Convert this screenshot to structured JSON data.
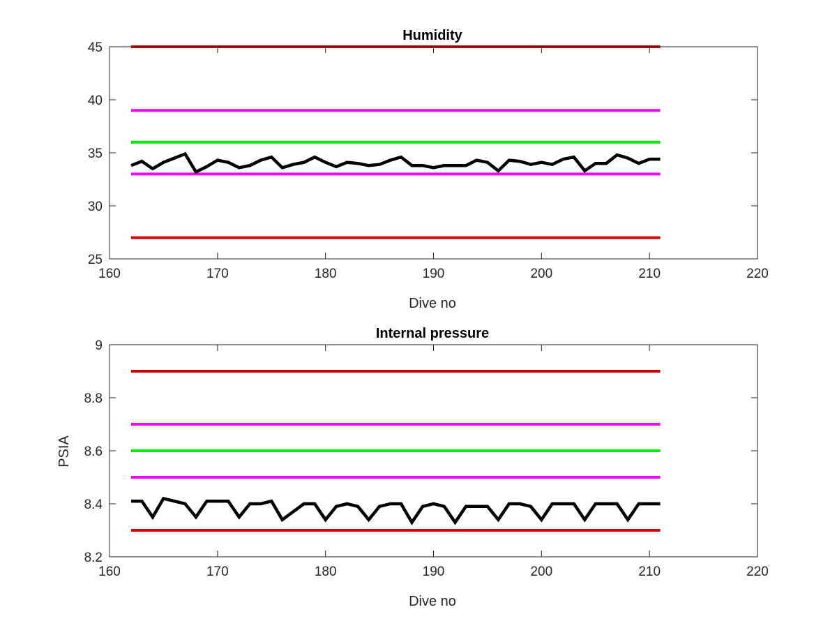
{
  "chart_data": [
    {
      "type": "line",
      "title": "Humidity",
      "xlabel": "Dive no",
      "ylabel": "",
      "xlim": [
        160,
        220
      ],
      "ylim": [
        25,
        45
      ],
      "xticks": [
        160,
        170,
        180,
        190,
        200,
        210,
        220
      ],
      "yticks": [
        25,
        30,
        35,
        40,
        45
      ],
      "grid": false,
      "series": [
        {
          "color": "#d40000",
          "x": [
            162,
            211
          ],
          "y": [
            45,
            45
          ]
        },
        {
          "color": "#ff00ff",
          "x": [
            162,
            211
          ],
          "y": [
            39,
            39
          ]
        },
        {
          "color": "#00ee00",
          "x": [
            162,
            211
          ],
          "y": [
            36,
            36
          ]
        },
        {
          "color": "#ff00ff",
          "x": [
            162,
            211
          ],
          "y": [
            33,
            33
          ]
        },
        {
          "color": "#d40000",
          "x": [
            162,
            211
          ],
          "y": [
            27,
            27
          ]
        },
        {
          "color": "#000000",
          "x": [
            162,
            163,
            164,
            165,
            166,
            167,
            168,
            169,
            170,
            171,
            172,
            173,
            174,
            175,
            176,
            177,
            178,
            179,
            180,
            181,
            182,
            183,
            184,
            185,
            186,
            187,
            188,
            189,
            190,
            191,
            192,
            193,
            194,
            195,
            196,
            197,
            198,
            199,
            200,
            201,
            202,
            203,
            204,
            205,
            206,
            207,
            208,
            209,
            210,
            211
          ],
          "y": [
            33.8,
            34.2,
            33.5,
            34.1,
            34.5,
            34.9,
            33.2,
            33.7,
            34.3,
            34.1,
            33.6,
            33.8,
            34.3,
            34.6,
            33.6,
            33.9,
            34.1,
            34.6,
            34.1,
            33.7,
            34.1,
            34.0,
            33.8,
            33.9,
            34.3,
            34.6,
            33.8,
            33.8,
            33.6,
            33.8,
            33.8,
            33.8,
            34.3,
            34.1,
            33.3,
            34.3,
            34.2,
            33.9,
            34.1,
            33.9,
            34.4,
            34.6,
            33.3,
            34.0,
            34.0,
            34.8,
            34.5,
            34.0,
            34.4,
            34.4
          ]
        }
      ]
    },
    {
      "type": "line",
      "title": "Internal pressure",
      "xlabel": "Dive no",
      "ylabel": "PSIA",
      "xlim": [
        160,
        220
      ],
      "ylim": [
        8.2,
        9.0
      ],
      "xticks": [
        160,
        170,
        180,
        190,
        200,
        210,
        220
      ],
      "yticks": [
        8.2,
        8.4,
        8.6,
        8.8,
        9
      ],
      "ytick_labels": [
        "8.2",
        "8.4",
        "8.6",
        "8.8",
        "9"
      ],
      "grid": false,
      "series": [
        {
          "color": "#d40000",
          "x": [
            162,
            211
          ],
          "y": [
            8.9,
            8.9
          ]
        },
        {
          "color": "#ff00ff",
          "x": [
            162,
            211
          ],
          "y": [
            8.7,
            8.7
          ]
        },
        {
          "color": "#00ee00",
          "x": [
            162,
            211
          ],
          "y": [
            8.6,
            8.6
          ]
        },
        {
          "color": "#ff00ff",
          "x": [
            162,
            211
          ],
          "y": [
            8.5,
            8.5
          ]
        },
        {
          "color": "#d40000",
          "x": [
            162,
            211
          ],
          "y": [
            8.3,
            8.3
          ]
        },
        {
          "color": "#000000",
          "x": [
            162,
            163,
            164,
            165,
            166,
            167,
            168,
            169,
            170,
            171,
            172,
            173,
            174,
            175,
            176,
            177,
            178,
            179,
            180,
            181,
            182,
            183,
            184,
            185,
            186,
            187,
            188,
            189,
            190,
            191,
            192,
            193,
            194,
            195,
            196,
            197,
            198,
            199,
            200,
            201,
            202,
            203,
            204,
            205,
            206,
            207,
            208,
            209,
            210,
            211
          ],
          "y": [
            8.41,
            8.41,
            8.35,
            8.42,
            8.41,
            8.4,
            8.35,
            8.41,
            8.41,
            8.41,
            8.35,
            8.4,
            8.4,
            8.41,
            8.34,
            8.37,
            8.4,
            8.4,
            8.34,
            8.39,
            8.4,
            8.39,
            8.34,
            8.39,
            8.4,
            8.4,
            8.33,
            8.39,
            8.4,
            8.39,
            8.33,
            8.39,
            8.39,
            8.39,
            8.34,
            8.4,
            8.4,
            8.39,
            8.34,
            8.4,
            8.4,
            8.4,
            8.34,
            8.4,
            8.4,
            8.4,
            8.34,
            8.4,
            8.4,
            8.4
          ]
        }
      ]
    }
  ]
}
